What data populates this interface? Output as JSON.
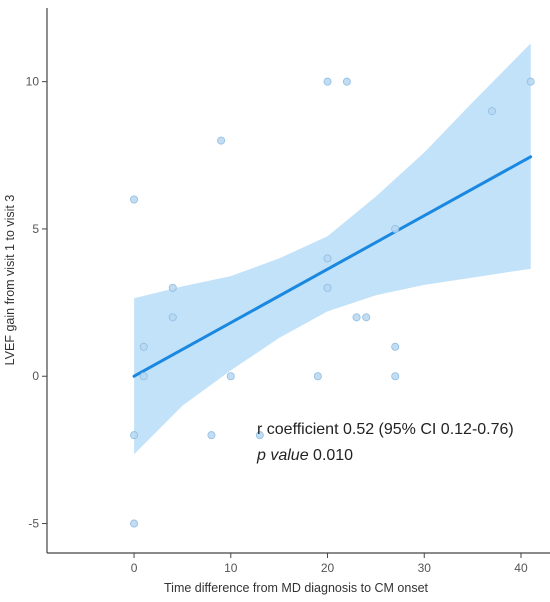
{
  "chart_data": {
    "type": "scatter",
    "xlabel": "Time difference from MD diagnosis to CM onset",
    "ylabel": "LVEF gain from visit 1 to visit 3",
    "xlim": [
      -9,
      43
    ],
    "ylim": [
      -6,
      12.5
    ],
    "x_ticks": [
      0,
      10,
      20,
      30,
      40
    ],
    "y_ticks": [
      -5,
      0,
      5,
      10
    ],
    "grid": false,
    "points": [
      {
        "x": 0,
        "y": 6
      },
      {
        "x": 0,
        "y": -2
      },
      {
        "x": 0,
        "y": -5
      },
      {
        "x": 1,
        "y": 1
      },
      {
        "x": 1,
        "y": 0
      },
      {
        "x": 4,
        "y": 3
      },
      {
        "x": 4,
        "y": 2
      },
      {
        "x": 8,
        "y": -2
      },
      {
        "x": 9,
        "y": 8
      },
      {
        "x": 10,
        "y": 0
      },
      {
        "x": 13,
        "y": -2
      },
      {
        "x": 19,
        "y": 0
      },
      {
        "x": 20,
        "y": 10
      },
      {
        "x": 20,
        "y": 4
      },
      {
        "x": 20,
        "y": 3
      },
      {
        "x": 22,
        "y": 10
      },
      {
        "x": 23,
        "y": 2
      },
      {
        "x": 24,
        "y": 2
      },
      {
        "x": 27,
        "y": 5
      },
      {
        "x": 27,
        "y": 1
      },
      {
        "x": 27,
        "y": 0
      },
      {
        "x": 37,
        "y": 9
      },
      {
        "x": 41,
        "y": 10
      }
    ],
    "regression_line": {
      "x": [
        0,
        41
      ],
      "y": [
        0,
        7.45
      ]
    },
    "confidence_band": [
      {
        "x": 0,
        "lower": -2.65,
        "upper": 2.65
      },
      {
        "x": 5,
        "lower": -1.0,
        "upper": 3.05
      },
      {
        "x": 10,
        "lower": 0.2,
        "upper": 3.4
      },
      {
        "x": 15,
        "lower": 1.3,
        "upper": 4.0
      },
      {
        "x": 20,
        "lower": 2.2,
        "upper": 4.75
      },
      {
        "x": 25,
        "lower": 2.75,
        "upper": 6.1
      },
      {
        "x": 30,
        "lower": 3.1,
        "upper": 7.6
      },
      {
        "x": 35,
        "lower": 3.35,
        "upper": 9.3
      },
      {
        "x": 41,
        "lower": 3.65,
        "upper": 11.3
      }
    ],
    "annotation": {
      "line1": "r coefficient 0.52 (95% CI 0.12-0.76)",
      "line2_italic": "p value",
      "line2_rest": " 0.010"
    },
    "colors": {
      "point_fill": "#b7d7f0",
      "point_stroke": "#8fbde3",
      "line": "#1a88e0",
      "band": "#bfe0fa",
      "axis": "#444444"
    }
  }
}
